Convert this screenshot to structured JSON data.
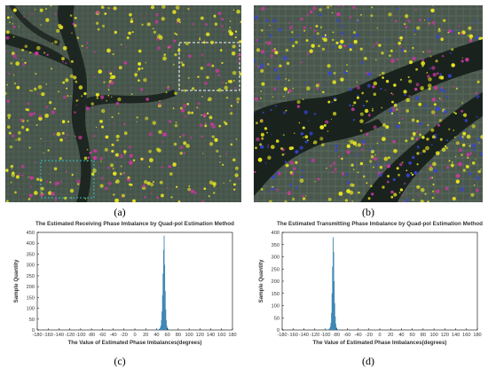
{
  "captions": {
    "a": "(a)",
    "b": "(b)",
    "c": "(c)",
    "d": "(d)"
  },
  "colors": {
    "river": "#1a221e",
    "land": "#4b5a4f",
    "highlight_yellow": "#e8e61e",
    "highlight_magenta": "#c8389c",
    "highlight_blue": "#3545d8",
    "bar": "#3f87b4",
    "axis": "#000000"
  },
  "chart_data": [
    {
      "type": "bar",
      "title": "The Estimated Receiving Phase Imbalance by Quad-pol Estimation Method",
      "xlabel": "The Value of Estimated Phase Imbalances(degrees)",
      "ylabel": "Sample Quantity",
      "xlim": [
        -180,
        180
      ],
      "ylim": [
        0,
        450
      ],
      "xticks": [
        -180,
        -160,
        -140,
        -120,
        -100,
        -80,
        -60,
        -40,
        -20,
        0,
        20,
        40,
        60,
        80,
        100,
        120,
        140,
        160,
        180
      ],
      "yticks": [
        0,
        50,
        100,
        150,
        200,
        250,
        300,
        350,
        400,
        450
      ],
      "bin_width": 1,
      "bins": [
        {
          "x": 42,
          "y": 1
        },
        {
          "x": 43,
          "y": 2
        },
        {
          "x": 44,
          "y": 3
        },
        {
          "x": 45,
          "y": 4
        },
        {
          "x": 46,
          "y": 7
        },
        {
          "x": 47,
          "y": 12
        },
        {
          "x": 48,
          "y": 20
        },
        {
          "x": 49,
          "y": 45
        },
        {
          "x": 50,
          "y": 85
        },
        {
          "x": 51,
          "y": 160
        },
        {
          "x": 52,
          "y": 260
        },
        {
          "x": 53,
          "y": 370
        },
        {
          "x": 54,
          "y": 435
        },
        {
          "x": 55,
          "y": 300
        },
        {
          "x": 56,
          "y": 180
        },
        {
          "x": 57,
          "y": 95
        },
        {
          "x": 58,
          "y": 45
        },
        {
          "x": 59,
          "y": 20
        },
        {
          "x": 60,
          "y": 10
        },
        {
          "x": 61,
          "y": 6
        },
        {
          "x": 62,
          "y": 3
        },
        {
          "x": 63,
          "y": 2
        },
        {
          "x": 64,
          "y": 1
        },
        {
          "x": 66,
          "y": 1
        },
        {
          "x": 70,
          "y": 1
        },
        {
          "x": 75,
          "y": 1
        },
        {
          "x": 125,
          "y": 1
        },
        {
          "x": 131,
          "y": 2
        },
        {
          "x": 135,
          "y": 1
        },
        {
          "x": 140,
          "y": 1
        },
        {
          "x": 33,
          "y": 1
        },
        {
          "x": 37,
          "y": 1
        }
      ]
    },
    {
      "type": "bar",
      "title": "The Estimated Transmitting Phase Imbalance by Quad-pol Estimation Method",
      "xlabel": "The Value of Estimated Phase Imbalances(degrees)",
      "ylabel": "Sample Quantity",
      "xlim": [
        -180,
        180
      ],
      "ylim": [
        0,
        400
      ],
      "xticks": [
        -180,
        -160,
        -140,
        -120,
        -100,
        -80,
        -60,
        -40,
        -20,
        0,
        20,
        40,
        60,
        80,
        100,
        120,
        140,
        160,
        180
      ],
      "yticks": [
        0,
        50,
        100,
        150,
        200,
        250,
        300,
        350,
        400
      ],
      "bin_width": 1,
      "bins": [
        {
          "x": -96,
          "y": 1
        },
        {
          "x": -95,
          "y": 2
        },
        {
          "x": -94,
          "y": 3
        },
        {
          "x": -93,
          "y": 5
        },
        {
          "x": -92,
          "y": 8
        },
        {
          "x": -91,
          "y": 15
        },
        {
          "x": -90,
          "y": 30
        },
        {
          "x": -89,
          "y": 70
        },
        {
          "x": -88,
          "y": 150
        },
        {
          "x": -87,
          "y": 260
        },
        {
          "x": -86,
          "y": 380
        },
        {
          "x": -85,
          "y": 320
        },
        {
          "x": -84,
          "y": 200
        },
        {
          "x": -83,
          "y": 110
        },
        {
          "x": -82,
          "y": 55
        },
        {
          "x": -81,
          "y": 25
        },
        {
          "x": -80,
          "y": 12
        },
        {
          "x": -79,
          "y": 6
        },
        {
          "x": -78,
          "y": 3
        },
        {
          "x": -76,
          "y": 2
        },
        {
          "x": -72,
          "y": 1
        },
        {
          "x": -65,
          "y": 1
        },
        {
          "x": -55,
          "y": 1
        },
        {
          "x": -40,
          "y": 1
        },
        {
          "x": -25,
          "y": 1
        },
        {
          "x": -10,
          "y": 1
        },
        {
          "x": 0,
          "y": 2
        },
        {
          "x": 10,
          "y": 1
        },
        {
          "x": -100,
          "y": 1
        },
        {
          "x": -110,
          "y": 1
        }
      ]
    }
  ]
}
